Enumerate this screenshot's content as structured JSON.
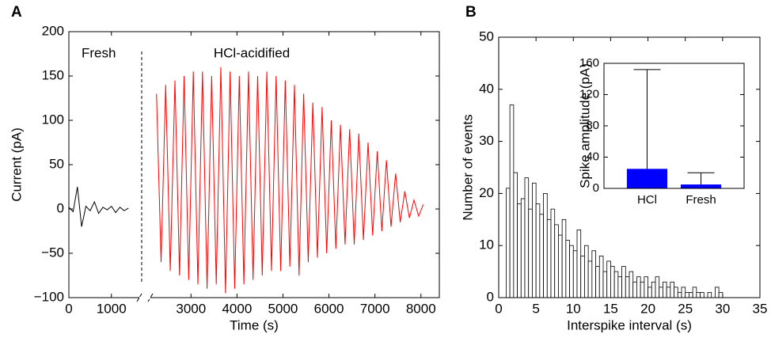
{
  "chart_data": [
    {
      "type": "line",
      "panel_label": "A",
      "xlabel": "Time (s)",
      "ylabel": "Current (pA)",
      "xlim": [
        0,
        8400
      ],
      "x_break": [
        1600,
        2100
      ],
      "xticks": [
        0,
        1000,
        3000,
        4000,
        5000,
        6000,
        7000,
        8000
      ],
      "ylim": [
        -100,
        200
      ],
      "yticks": [
        {
          "value": -100,
          "label": "−100"
        },
        {
          "value": -50,
          "label": "−50"
        },
        0,
        50,
        100,
        150,
        200
      ],
      "series": [
        {
          "name": "Fresh",
          "color": "#000000",
          "x": [
            0,
            100,
            200,
            300,
            400,
            500,
            600,
            700,
            800,
            900,
            1000,
            1100,
            1200,
            1300,
            1400
          ],
          "values": [
            2,
            -3,
            25,
            -20,
            3,
            -2,
            8,
            -5,
            2,
            -1,
            3,
            -4,
            2,
            -2,
            1
          ]
        },
        {
          "name": "HCl-acidified",
          "color": "#ff0000",
          "x": [
            2250,
            2350,
            2450,
            2550,
            2650,
            2750,
            2850,
            2950,
            3050,
            3150,
            3250,
            3350,
            3450,
            3550,
            3650,
            3750,
            3850,
            3950,
            4050,
            4150,
            4250,
            4350,
            4450,
            4550,
            4650,
            4750,
            4850,
            4950,
            5050,
            5150,
            5250,
            5350,
            5450,
            5550,
            5650,
            5750,
            5850,
            5950,
            6050,
            6150,
            6250,
            6350,
            6450,
            6550,
            6650,
            6750,
            6850,
            6950,
            7050,
            7150,
            7250,
            7350,
            7450,
            7550,
            7650,
            7750,
            7850,
            7950,
            8050
          ],
          "values": [
            130,
            -60,
            140,
            -70,
            145,
            -75,
            150,
            -80,
            155,
            -85,
            155,
            -90,
            150,
            -85,
            160,
            -95,
            155,
            -90,
            150,
            -85,
            155,
            -80,
            150,
            -75,
            155,
            -70,
            150,
            -70,
            145,
            -65,
            140,
            -75,
            130,
            -60,
            120,
            -55,
            115,
            -50,
            100,
            -45,
            95,
            -40,
            90,
            -40,
            85,
            -35,
            75,
            -30,
            65,
            -25,
            55,
            -20,
            40,
            -15,
            20,
            -10,
            10,
            -8,
            5
          ]
        }
      ]
    },
    {
      "type": "histogram",
      "panel_label": "B",
      "xlabel": "Interspike interval (s)",
      "ylabel": "Number of events",
      "xlim": [
        0,
        35
      ],
      "xticks": [
        0,
        5,
        10,
        15,
        20,
        25,
        30,
        35
      ],
      "ylim": [
        0,
        50
      ],
      "yticks": [
        0,
        10,
        20,
        30,
        40,
        50
      ],
      "bins": [
        1.0,
        1.5,
        2.0,
        2.5,
        3.0,
        3.5,
        4.0,
        4.5,
        5.0,
        5.5,
        6.0,
        6.5,
        7.0,
        7.5,
        8.0,
        8.5,
        9.0,
        9.5,
        10.0,
        10.5,
        11.0,
        11.5,
        12.0,
        12.5,
        13.0,
        13.5,
        14.0,
        14.5,
        15.0,
        15.5,
        16.0,
        16.5,
        17.0,
        17.5,
        18.0,
        18.5,
        19.0,
        19.5,
        20.0,
        20.5,
        21.0,
        21.5,
        22.0,
        22.5,
        23.0,
        23.5,
        24.0,
        24.5,
        25.0,
        25.5,
        26.0,
        26.5,
        27.0,
        27.5,
        28.0,
        28.5,
        29.0,
        29.5,
        30.0
      ],
      "values": [
        21,
        37,
        24,
        18,
        19,
        23,
        17,
        22,
        18,
        16,
        20,
        15,
        17,
        14,
        12,
        15,
        11,
        10,
        9,
        13,
        8,
        10,
        7,
        9,
        6,
        8,
        5,
        7,
        6,
        5,
        4,
        6,
        4,
        5,
        3,
        4,
        3,
        4,
        2,
        3,
        4,
        2,
        3,
        2,
        3,
        2,
        1,
        2,
        1,
        1,
        2,
        1,
        1,
        0,
        1,
        0,
        2,
        1
      ],
      "color": "#ffffff"
    },
    {
      "type": "bar",
      "ylabel": "Spike amplitude (pA)",
      "categories": [
        "HCl",
        "Fresh"
      ],
      "values": [
        25,
        5
      ],
      "errors": [
        127,
        15
      ],
      "color": "#0000ff",
      "ylim": [
        0,
        160
      ],
      "yticks": [
        0,
        40,
        80,
        120,
        160
      ]
    }
  ]
}
